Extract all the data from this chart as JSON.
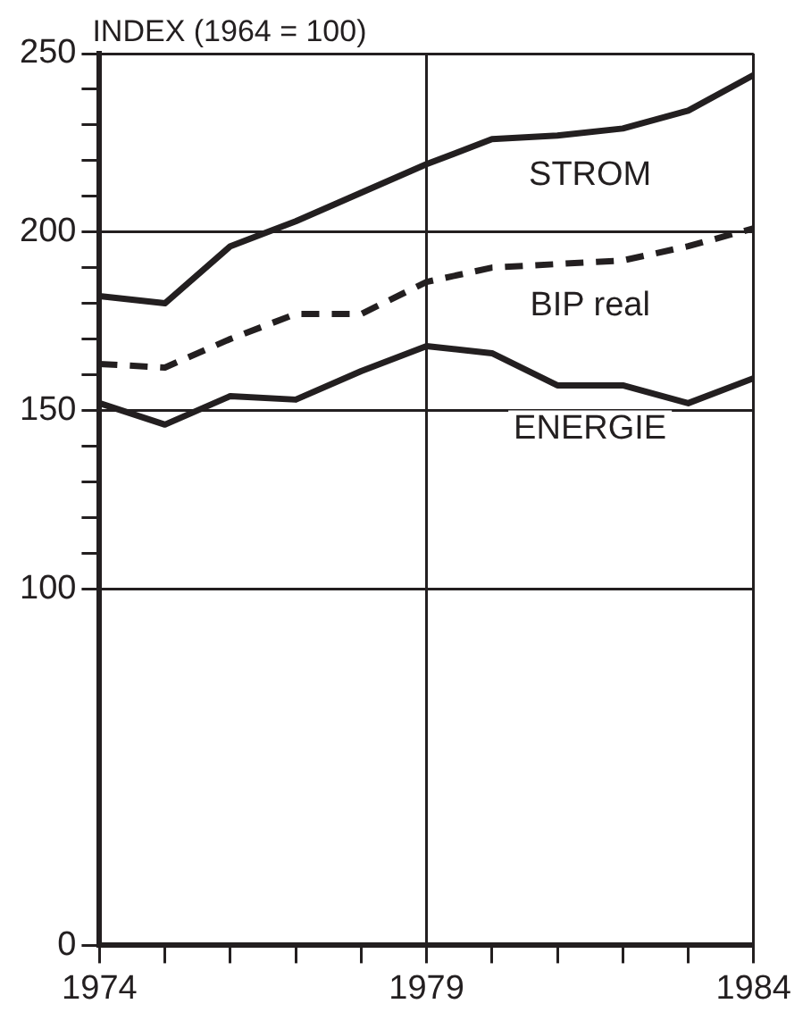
{
  "chart_data": {
    "type": "line",
    "ylabel": "INDEX (1964 = 100)",
    "x": [
      1974,
      1975,
      1976,
      1977,
      1978,
      1979,
      1980,
      1981,
      1982,
      1983,
      1984
    ],
    "series": [
      {
        "name": "STROM",
        "color": "#231f20",
        "line_style": "solid",
        "values": [
          182,
          180,
          196,
          203,
          211,
          219,
          226,
          227,
          229,
          234,
          244
        ]
      },
      {
        "name": "BIP real",
        "color": "#231f20",
        "line_style": "dashed",
        "values": [
          163,
          162,
          170,
          177,
          177,
          186,
          190,
          191,
          192,
          196,
          201
        ]
      },
      {
        "name": "ENERGIE",
        "color": "#231f20",
        "line_style": "solid",
        "values": [
          152,
          146,
          154,
          153,
          161,
          168,
          166,
          157,
          157,
          152,
          159
        ]
      }
    ],
    "xlim": [
      1974,
      1984
    ],
    "xticks": [
      1974,
      {
        "value": 1975,
        "label": null
      },
      {
        "value": 1976,
        "label": null
      },
      {
        "value": 1977,
        "label": null
      },
      {
        "value": 1978,
        "label": null
      },
      1979,
      {
        "value": 1980,
        "label": null
      },
      {
        "value": 1981,
        "label": null
      },
      {
        "value": 1982,
        "label": null
      },
      {
        "value": 1983,
        "label": null
      },
      1984
    ],
    "ylim": [
      0,
      250
    ],
    "yticks": [
      0,
      100,
      {
        "value": 110,
        "label": null
      },
      {
        "value": 120,
        "label": null
      },
      {
        "value": 130,
        "label": null
      },
      {
        "value": 140,
        "label": null
      },
      150,
      {
        "value": 160,
        "label": null
      },
      {
        "value": 170,
        "label": null
      },
      {
        "value": 180,
        "label": null
      },
      {
        "value": 190,
        "label": null
      },
      200,
      {
        "value": 210,
        "label": null
      },
      {
        "value": 220,
        "label": null
      },
      {
        "value": 230,
        "label": null
      },
      {
        "value": 240,
        "label": null
      },
      250
    ],
    "grid": true,
    "legend": false,
    "marker": "none"
  }
}
